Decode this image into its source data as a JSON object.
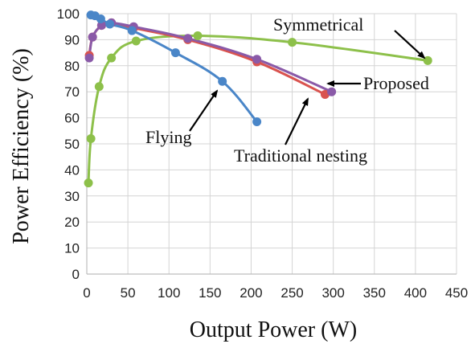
{
  "chart_data": {
    "type": "line",
    "xlabel": "Output Power  (W)",
    "ylabel": "Power Efficiency  (%)",
    "xlim": [
      0,
      450
    ],
    "ylim": [
      0,
      100
    ],
    "xticks": [
      0,
      50,
      100,
      150,
      200,
      250,
      300,
      350,
      400,
      450
    ],
    "yticks": [
      0,
      10,
      20,
      30,
      40,
      50,
      60,
      70,
      80,
      90,
      100
    ],
    "grid": true,
    "legend": "none",
    "series": [
      {
        "name": "Symmetrical",
        "color": "#8dc04a",
        "points": [
          [
            2,
            35
          ],
          [
            5,
            52
          ],
          [
            15,
            72
          ],
          [
            30,
            83
          ],
          [
            60,
            89.5
          ],
          [
            135,
            91.5
          ],
          [
            250,
            89
          ],
          [
            415,
            82
          ]
        ]
      },
      {
        "name": "Traditional  nesting",
        "color": "#d9534f",
        "points": [
          [
            3,
            84
          ],
          [
            7,
            91
          ],
          [
            18,
            95.5
          ],
          [
            30,
            96.5
          ],
          [
            57,
            94.5
          ],
          [
            123,
            90
          ],
          [
            207,
            81.5
          ],
          [
            290,
            69
          ]
        ]
      },
      {
        "name": "Proposed",
        "color": "#8a5aa8",
        "points": [
          [
            3,
            83
          ],
          [
            7,
            91
          ],
          [
            18,
            95.5
          ],
          [
            30,
            96.5
          ],
          [
            57,
            95
          ],
          [
            123,
            90.5
          ],
          [
            207,
            82.5
          ],
          [
            298,
            70
          ]
        ]
      },
      {
        "name": "Flying",
        "color": "#4a86c8",
        "points": [
          [
            5,
            99.5
          ],
          [
            10,
            99.2
          ],
          [
            17,
            98
          ],
          [
            28,
            96
          ],
          [
            55,
            93.5
          ],
          [
            108,
            85
          ],
          [
            165,
            74
          ],
          [
            207,
            58.5
          ]
        ]
      }
    ],
    "annotations": [
      {
        "text": "Symmetrical",
        "target_series": "Symmetrical"
      },
      {
        "text": "Proposed",
        "target_series": "Proposed"
      },
      {
        "text": "Flying",
        "target_series": "Flying"
      },
      {
        "text": "Traditional  nesting",
        "target_series": "Traditional  nesting"
      }
    ]
  }
}
